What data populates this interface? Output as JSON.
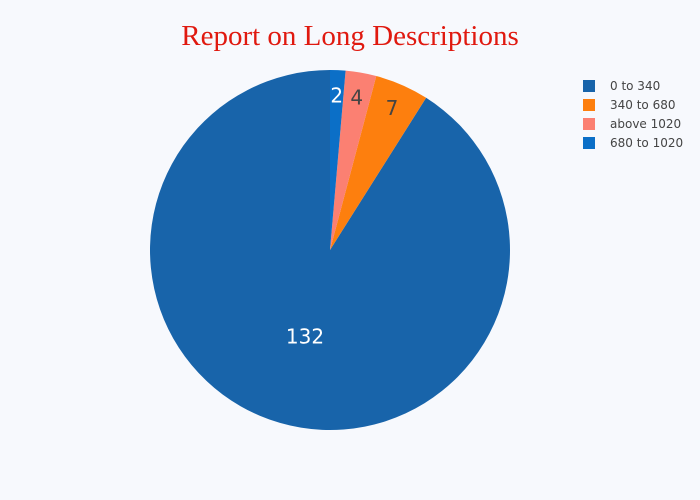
{
  "chart_data": {
    "type": "pie",
    "title": "Report on Long Descriptions",
    "slices": [
      {
        "label": "0 to 340",
        "value": 132,
        "color": "#1864aa"
      },
      {
        "label": "340 to 680",
        "value": 7,
        "color": "#fd7f0e"
      },
      {
        "label": "above 1020",
        "value": 4,
        "color": "#fb8072"
      },
      {
        "label": "680 to 1020",
        "value": 2,
        "color": "#0b6fc7"
      }
    ],
    "label_colors": {
      "0 to 340": "#ffffff",
      "340 to 680": "#444444",
      "above 1020": "#444444",
      "680 to 1020": "#ffffff"
    },
    "legend_position": "top-right",
    "direction": "counterclockwise",
    "start": "top"
  }
}
